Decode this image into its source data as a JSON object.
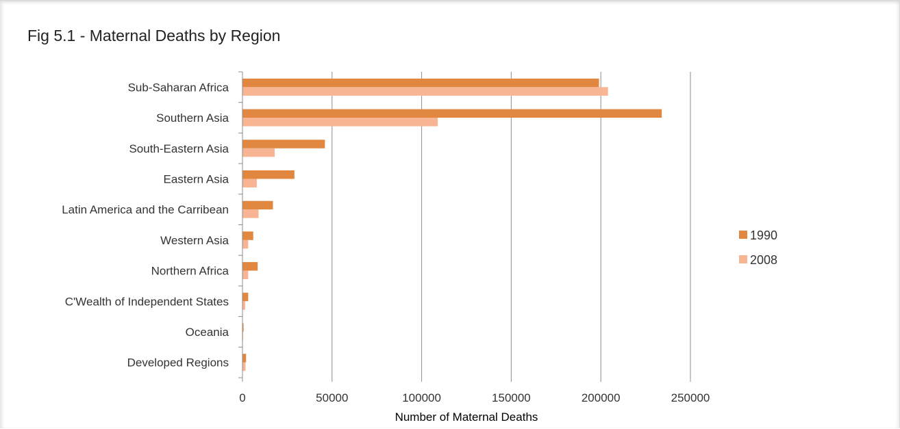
{
  "chart_data": {
    "type": "bar",
    "orientation": "horizontal",
    "title": "Fig 5.1 - Maternal Deaths by Region",
    "xlabel": "Number of Maternal Deaths",
    "ylabel": "",
    "xlim": [
      0,
      250000
    ],
    "x_ticks": [
      "0",
      "50000",
      "100000",
      "150000",
      "200000",
      "250000"
    ],
    "x_tick_values": [
      0,
      50000,
      100000,
      150000,
      200000,
      250000
    ],
    "grid": "vertical",
    "legend_position": "right",
    "categories": [
      "Sub-Saharan Africa",
      "Southern Asia",
      "South-Eastern Asia",
      "Eastern Asia",
      "Latin America and the Carribean",
      "Western Asia",
      "Northern Africa",
      "C'Wealth of Independent States",
      "Oceania",
      "Developed Regions"
    ],
    "series": [
      {
        "name": "1990",
        "color": "#e1873f",
        "values": [
          199000,
          234000,
          46000,
          29000,
          17000,
          6000,
          8500,
          3200,
          600,
          2000
        ]
      },
      {
        "name": "2008",
        "color": "#f8b593",
        "values": [
          204000,
          109000,
          18000,
          8000,
          9000,
          3200,
          3200,
          1500,
          400,
          1700
        ]
      }
    ]
  }
}
